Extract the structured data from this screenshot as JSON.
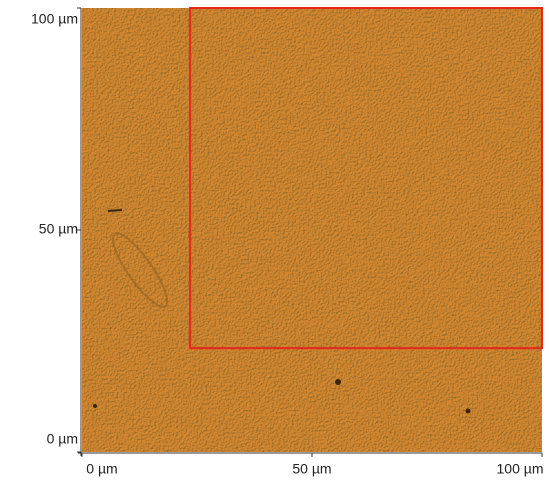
{
  "chart_data": {
    "type": "image",
    "xlim": [
      0,
      100
    ],
    "ylim": [
      0,
      100
    ],
    "xticks": [
      {
        "value": 0,
        "label": "0 µm"
      },
      {
        "value": 50,
        "label": "50 µm"
      },
      {
        "value": 100,
        "label": "100 µm"
      }
    ],
    "yticks": [
      {
        "value": 0,
        "label": "0 µm"
      },
      {
        "value": 50,
        "label": "50 µm"
      },
      {
        "value": 100,
        "label": "100 µm"
      }
    ],
    "region": {
      "x": [
        23.5,
        100
      ],
      "y": [
        23.4,
        100
      ],
      "color": "#e8261c"
    }
  }
}
